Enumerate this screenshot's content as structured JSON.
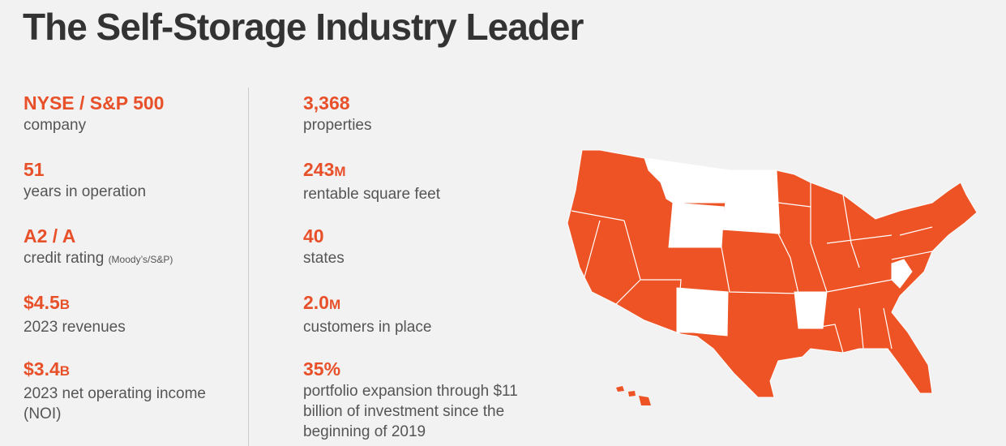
{
  "header": {
    "title": "The Self-Storage Industry Leader"
  },
  "columns": [
    [
      {
        "figure": "NYSE / S&P 500",
        "label": "company"
      },
      {
        "figure": "51",
        "label": "years in operation"
      },
      {
        "figure": "A2 / A",
        "label": "credit rating",
        "note": "(Moody’s/S&P)"
      },
      {
        "figure": "$4.5",
        "unit": "B",
        "label": "2023 revenues"
      },
      {
        "figure": "$3.4",
        "unit": "B",
        "label": "2023 net operating income (NOI)"
      }
    ],
    [
      {
        "figure": "3,368",
        "label": "properties"
      },
      {
        "figure": "243",
        "unit": "M",
        "label": "rentable square feet"
      },
      {
        "figure": "40",
        "label": "states"
      },
      {
        "figure": "2.0",
        "unit": "M",
        "label": "customers in place"
      },
      {
        "figure": "35%",
        "label": "portfolio expansion through $11 billion of investment since the beginning of 2019"
      }
    ]
  ]
}
